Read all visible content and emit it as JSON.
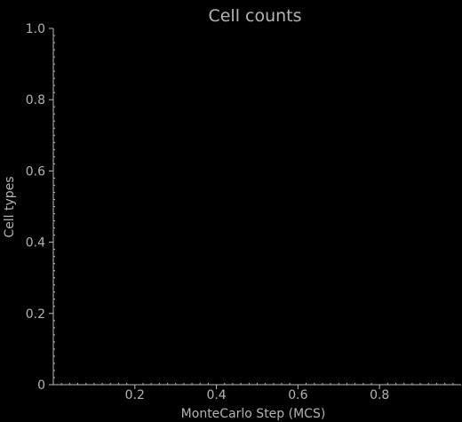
{
  "colors": {
    "background": "#000000",
    "axis": "#bdbdbd",
    "text": "#b4b4b4"
  },
  "chart_data": {
    "type": "line",
    "title": "Cell counts",
    "xlabel": "MonteCarlo Step (MCS)",
    "ylabel": "Cell types",
    "xlim": [
      0,
      1.0
    ],
    "ylim": [
      0,
      1.0
    ],
    "x_ticks": [
      0.2,
      0.4,
      0.6,
      0.8
    ],
    "x_tick_labels": [
      "0.2",
      "0.4",
      "0.6",
      "0.8"
    ],
    "y_ticks": [
      0,
      0.2,
      0.4,
      0.6,
      0.8,
      1.0
    ],
    "y_tick_labels": [
      "0",
      "0.2",
      "0.4",
      "0.6",
      "0.8",
      "1.0"
    ],
    "grid": false,
    "series": []
  }
}
